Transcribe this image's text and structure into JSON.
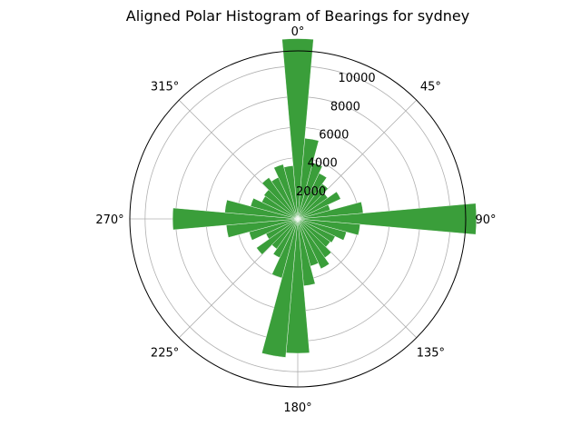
{
  "chart_data": {
    "type": "polar-bar",
    "title": "Aligned Polar Histogram of Bearings for sydney",
    "theta_zero_location": "N",
    "theta_direction": "clockwise",
    "bin_width_deg": 10,
    "bar_color": "#3a9e3a",
    "bar_alpha": 1.0,
    "rmax": 11000,
    "radial_ticks": [
      2000,
      4000,
      6000,
      8000,
      10000
    ],
    "radial_tick_labels": [
      "2000",
      "4000",
      "6000",
      "8000",
      "10000"
    ],
    "radial_label_angle_deg": 22,
    "angle_ticks": [
      0,
      45,
      90,
      135,
      180,
      225,
      270,
      315
    ],
    "angle_tick_labels": [
      "0°",
      "45°",
      "90°",
      "135°",
      "180°",
      "225°",
      "270°",
      "315°"
    ],
    "grid": true,
    "bins": [
      {
        "angle": 0,
        "value": 11800
      },
      {
        "angle": 10,
        "value": 5300
      },
      {
        "angle": 20,
        "value": 3800
      },
      {
        "angle": 30,
        "value": 3300
      },
      {
        "angle": 40,
        "value": 2800
      },
      {
        "angle": 50,
        "value": 2400
      },
      {
        "angle": 60,
        "value": 3100
      },
      {
        "angle": 70,
        "value": 2200
      },
      {
        "angle": 80,
        "value": 4300
      },
      {
        "angle": 90,
        "value": 11700
      },
      {
        "angle": 100,
        "value": 4100
      },
      {
        "angle": 110,
        "value": 3300
      },
      {
        "angle": 120,
        "value": 2700
      },
      {
        "angle": 130,
        "value": 2600
      },
      {
        "angle": 140,
        "value": 3100
      },
      {
        "angle": 150,
        "value": 3600
      },
      {
        "angle": 160,
        "value": 3200
      },
      {
        "angle": 170,
        "value": 4400
      },
      {
        "angle": 180,
        "value": 8800
      },
      {
        "angle": 190,
        "value": 9100
      },
      {
        "angle": 200,
        "value": 4000
      },
      {
        "angle": 210,
        "value": 2800
      },
      {
        "angle": 220,
        "value": 2400
      },
      {
        "angle": 230,
        "value": 3300
      },
      {
        "angle": 240,
        "value": 2300
      },
      {
        "angle": 250,
        "value": 3300
      },
      {
        "angle": 260,
        "value": 4700
      },
      {
        "angle": 270,
        "value": 8200
      },
      {
        "angle": 280,
        "value": 4800
      },
      {
        "angle": 290,
        "value": 3200
      },
      {
        "angle": 300,
        "value": 2600
      },
      {
        "angle": 310,
        "value": 2700
      },
      {
        "angle": 320,
        "value": 3300
      },
      {
        "angle": 330,
        "value": 3000
      },
      {
        "angle": 340,
        "value": 3700
      },
      {
        "angle": 350,
        "value": 3500
      }
    ]
  }
}
